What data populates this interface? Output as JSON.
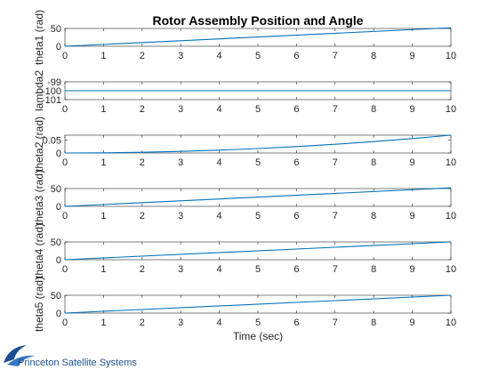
{
  "figure": {
    "title": "Rotor Assembly Position and Angle",
    "xlabel": "Time (sec)"
  },
  "logo": {
    "text": "Princeton Satellite Systems",
    "color": "#1c4f8f"
  },
  "colors": {
    "line": "#0072bd",
    "axes": "#262626",
    "background": "#ffffff"
  },
  "chart_data": [
    {
      "type": "line",
      "ylabel": "theta1 (rad)",
      "xlim": [
        0,
        10
      ],
      "ylim": [
        0,
        50
      ],
      "xticks": [
        0,
        1,
        2,
        3,
        4,
        5,
        6,
        7,
        8,
        9,
        10
      ],
      "yticks": [
        0,
        50
      ],
      "grid": false,
      "series": [
        {
          "x": [
            0,
            10
          ],
          "y": [
            0,
            52
          ]
        }
      ]
    },
    {
      "type": "line",
      "ylabel": "lambda2",
      "xlim": [
        0,
        10
      ],
      "ylim": [
        -101,
        -99
      ],
      "xticks": [
        0,
        1,
        2,
        3,
        4,
        5,
        6,
        7,
        8,
        9,
        10
      ],
      "yticks": [
        -101,
        -100,
        -99
      ],
      "grid": false,
      "series": [
        {
          "x": [
            0,
            10
          ],
          "y": [
            -100,
            -100
          ]
        }
      ]
    },
    {
      "type": "line",
      "ylabel": "theta2 (rad)",
      "xlim": [
        0,
        10
      ],
      "ylim": [
        0,
        0.07
      ],
      "xticks": [
        0,
        1,
        2,
        3,
        4,
        5,
        6,
        7,
        8,
        9,
        10
      ],
      "yticks": [
        0,
        0.05
      ],
      "grid": false,
      "series": [
        {
          "x": [
            0,
            1,
            2,
            3,
            4,
            5,
            6,
            7,
            8,
            9,
            10
          ],
          "y": [
            0,
            0.0007,
            0.0028,
            0.0063,
            0.0112,
            0.0175,
            0.0252,
            0.0343,
            0.0448,
            0.0567,
            0.07
          ]
        }
      ]
    },
    {
      "type": "line",
      "ylabel": "theta3 (rad)",
      "xlim": [
        0,
        10
      ],
      "ylim": [
        0,
        50
      ],
      "xticks": [
        0,
        1,
        2,
        3,
        4,
        5,
        6,
        7,
        8,
        9,
        10
      ],
      "yticks": [
        0,
        50
      ],
      "grid": false,
      "series": [
        {
          "x": [
            0,
            10
          ],
          "y": [
            0,
            52
          ]
        }
      ]
    },
    {
      "type": "line",
      "ylabel": "theta4 (rad)",
      "xlim": [
        0,
        10
      ],
      "ylim": [
        0,
        50
      ],
      "xticks": [
        0,
        1,
        2,
        3,
        4,
        5,
        6,
        7,
        8,
        9,
        10
      ],
      "yticks": [
        0,
        50
      ],
      "grid": false,
      "series": [
        {
          "x": [
            0,
            10
          ],
          "y": [
            0,
            50
          ]
        }
      ]
    },
    {
      "type": "line",
      "ylabel": "theta5 (rad)",
      "xlim": [
        0,
        10
      ],
      "ylim": [
        0,
        50
      ],
      "xticks": [
        0,
        1,
        2,
        3,
        4,
        5,
        6,
        7,
        8,
        9,
        10
      ],
      "yticks": [
        0,
        50
      ],
      "grid": false,
      "series": [
        {
          "x": [
            0,
            10
          ],
          "y": [
            0,
            50
          ]
        }
      ]
    }
  ]
}
